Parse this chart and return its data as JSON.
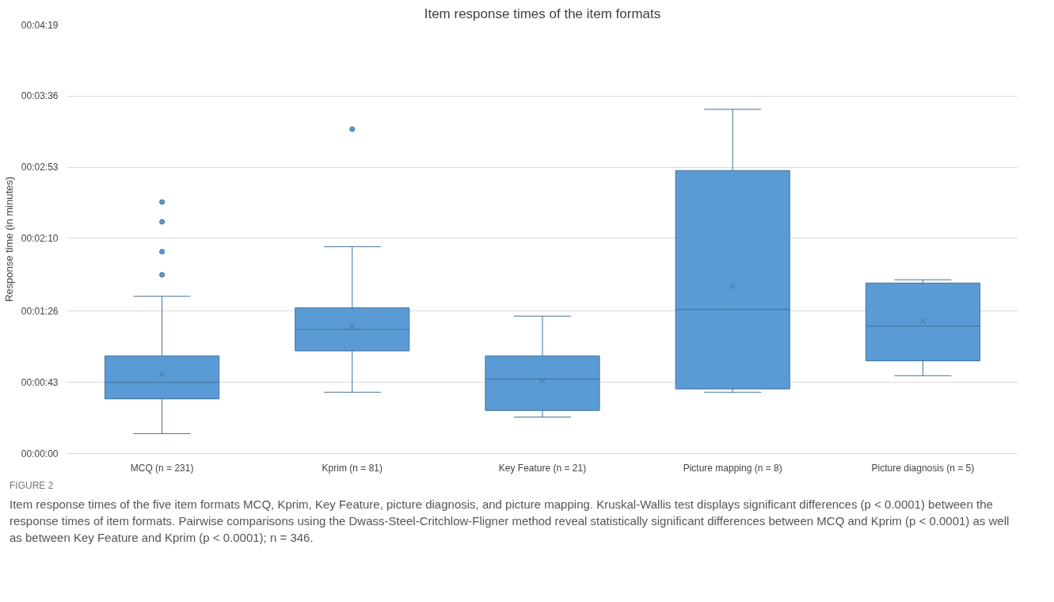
{
  "chart_data": {
    "type": "box",
    "title": "Item response times of the item formats",
    "ylabel": "Response time (in minutes)",
    "categories": [
      "MCQ (n = 231)",
      "Kprim (n = 81)",
      "Key Feature (n = 21)",
      "Picture mapping (n = 8)",
      "Picture diagnosis (n = 5)"
    ],
    "color": "#5b9bd5",
    "boxes": [
      {
        "low": 12,
        "q1": 33,
        "median": 43,
        "q3": 59,
        "high": 95,
        "mean": 48,
        "outliers": [
          108,
          122,
          140,
          152
        ]
      },
      {
        "low": 37,
        "q1": 62,
        "median": 75,
        "q3": 88,
        "high": 125,
        "mean": 77,
        "outliers": [
          196
        ]
      },
      {
        "low": 22,
        "q1": 26,
        "median": 45,
        "q3": 59,
        "high": 83,
        "mean": 44
      },
      {
        "low": 37,
        "q1": 39,
        "median": 87,
        "q3": 171,
        "high": 208,
        "mean": 101
      },
      {
        "low": 47,
        "q1": 56,
        "median": 77,
        "q3": 103,
        "high": 105,
        "mean": 80
      }
    ],
    "ylim": [
      0,
      259
    ],
    "yticks": [
      {
        "value": 0,
        "label": "00:00:00"
      },
      {
        "value": 43,
        "label": "00:00:43"
      },
      {
        "value": 86,
        "label": "00:01:26"
      },
      {
        "value": 130,
        "label": "00:02:10"
      },
      {
        "value": 173,
        "label": "00:02:53"
      },
      {
        "value": 216,
        "label": "00:03:36"
      },
      {
        "value": 259,
        "label": "00:04:19"
      }
    ],
    "grid": "y",
    "annotations": [
      "FIGURE 2",
      "Item response times of the five item formats MCQ, Kprim, Key Feature, picture diagnosis, and picture mapping. Kruskal-Wallis test displays significant differences (p < 0.0001) between the response times of item formats. Pairwise comparisons using the Dwass-Steel-Critchlow-Fligner method reveal statistically significant differences between MCQ and Kprim (p < 0.0001) as well as between Key Feature and Kprim (p < 0.0001); n = 346."
    ]
  }
}
